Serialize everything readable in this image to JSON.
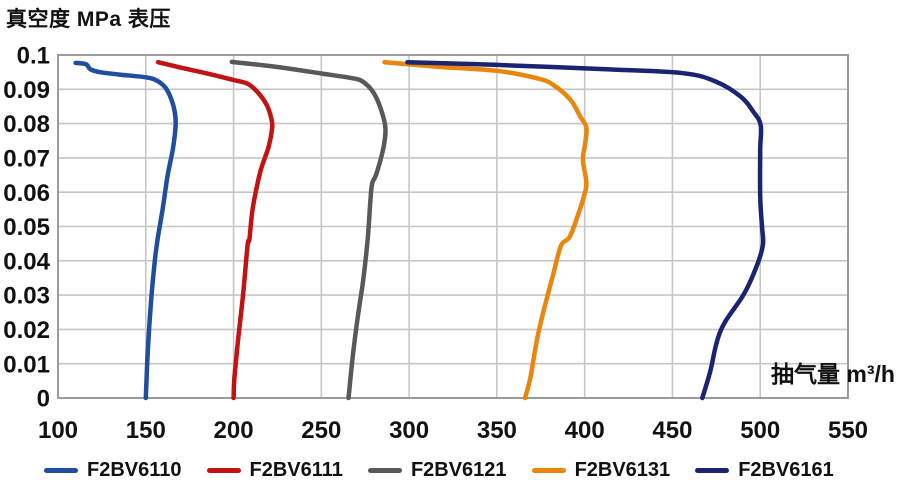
{
  "title": "真空度 MPa 表压",
  "colors": {
    "text": "#111111",
    "gridline": "#c6c6c6",
    "plot_border": "#9b9b9b",
    "background": "#ffffff"
  },
  "chart_data": {
    "type": "line",
    "title": "真空度 MPa 表压",
    "xlabel": "抽气量 m³/h",
    "ylabel": "真空度 MPa 表压",
    "xlim": [
      100,
      550
    ],
    "ylim": [
      0,
      0.1
    ],
    "x_ticks": [
      100,
      150,
      200,
      250,
      300,
      350,
      400,
      450,
      500,
      550
    ],
    "y_ticks": [
      0,
      0.01,
      0.02,
      0.03,
      0.04,
      0.05,
      0.06,
      0.07,
      0.08,
      0.09,
      0.1
    ],
    "y_tick_labels": [
      "0",
      "0.01",
      "0.02",
      "0.03",
      "0.04",
      "0.05",
      "0.06",
      "0.07",
      "0.08",
      "0.09",
      "0.1"
    ],
    "grid": true,
    "legend_position": "bottom",
    "series": [
      {
        "name": "F2BV6110",
        "color": "#1f4e9e",
        "points": [
          [
            110,
            0.0977
          ],
          [
            116,
            0.0973
          ],
          [
            118.5,
            0.0958
          ],
          [
            124,
            0.095
          ],
          [
            135,
            0.0943
          ],
          [
            150,
            0.0935
          ],
          [
            156,
            0.0926
          ],
          [
            161,
            0.0906
          ],
          [
            164.5,
            0.0872
          ],
          [
            166.5,
            0.0835
          ],
          [
            167,
            0.0795
          ],
          [
            165.5,
            0.0728
          ],
          [
            162.5,
            0.065
          ],
          [
            159.5,
            0.0548
          ],
          [
            156.5,
            0.0455
          ],
          [
            154.5,
            0.0368
          ],
          [
            152.5,
            0.0248
          ],
          [
            151,
            0.012
          ],
          [
            150,
            0
          ]
        ]
      },
      {
        "name": "F2BV6111",
        "color": "#c31212",
        "points": [
          [
            157,
            0.0979
          ],
          [
            170,
            0.0963
          ],
          [
            186,
            0.0945
          ],
          [
            200,
            0.0927
          ],
          [
            208,
            0.0916
          ],
          [
            214,
            0.089
          ],
          [
            219,
            0.0853
          ],
          [
            221.5,
            0.0815
          ],
          [
            222,
            0.0788
          ],
          [
            220,
            0.0733
          ],
          [
            215.5,
            0.0665
          ],
          [
            212.5,
            0.0597
          ],
          [
            210.5,
            0.0538
          ],
          [
            209,
            0.0462
          ],
          [
            208,
            0.0446
          ],
          [
            205.5,
            0.0305
          ],
          [
            202.5,
            0.0165
          ],
          [
            200.5,
            0.006
          ],
          [
            200,
            0
          ]
        ]
      },
      {
        "name": "F2BV6121",
        "color": "#595959",
        "points": [
          [
            199,
            0.098
          ],
          [
            225,
            0.0965
          ],
          [
            250,
            0.0946
          ],
          [
            268,
            0.0932
          ],
          [
            274,
            0.0921
          ],
          [
            280,
            0.0888
          ],
          [
            284,
            0.0841
          ],
          [
            286.5,
            0.0788
          ],
          [
            285.5,
            0.0733
          ],
          [
            281.5,
            0.0655
          ],
          [
            279,
            0.0626
          ],
          [
            278,
            0.058
          ],
          [
            276.5,
            0.047
          ],
          [
            274,
            0.035
          ],
          [
            271,
            0.0245
          ],
          [
            268,
            0.0125
          ],
          [
            265.5,
            0
          ]
        ]
      },
      {
        "name": "F2BV6131",
        "color": "#e8860d",
        "points": [
          [
            286,
            0.0979
          ],
          [
            316,
            0.0966
          ],
          [
            350,
            0.0954
          ],
          [
            373,
            0.0932
          ],
          [
            382,
            0.0913
          ],
          [
            392,
            0.0869
          ],
          [
            397.5,
            0.082
          ],
          [
            401,
            0.0788
          ],
          [
            400,
            0.0733
          ],
          [
            399,
            0.0694
          ],
          [
            401,
            0.0626
          ],
          [
            399.5,
            0.0587
          ],
          [
            396.5,
            0.0538
          ],
          [
            391.5,
            0.047
          ],
          [
            386.5,
            0.0444
          ],
          [
            382,
            0.0359
          ],
          [
            377.5,
            0.0272
          ],
          [
            373,
            0.0175
          ],
          [
            369,
            0.0057
          ],
          [
            366,
            0
          ]
        ]
      },
      {
        "name": "F2BV6161",
        "color": "#1a2472",
        "points": [
          [
            299,
            0.0979
          ],
          [
            350,
            0.0971
          ],
          [
            414,
            0.0958
          ],
          [
            456,
            0.0947
          ],
          [
            475,
            0.0922
          ],
          [
            489,
            0.0878
          ],
          [
            496,
            0.0835
          ],
          [
            500.3,
            0.0795
          ],
          [
            500,
            0.0723
          ],
          [
            500,
            0.0587
          ],
          [
            501,
            0.05
          ],
          [
            501.5,
            0.0446
          ],
          [
            497.5,
            0.0378
          ],
          [
            490.5,
            0.0301
          ],
          [
            480,
            0.0222
          ],
          [
            475.3,
            0.0164
          ],
          [
            471.5,
            0.0077
          ],
          [
            467,
            0
          ]
        ]
      }
    ]
  }
}
